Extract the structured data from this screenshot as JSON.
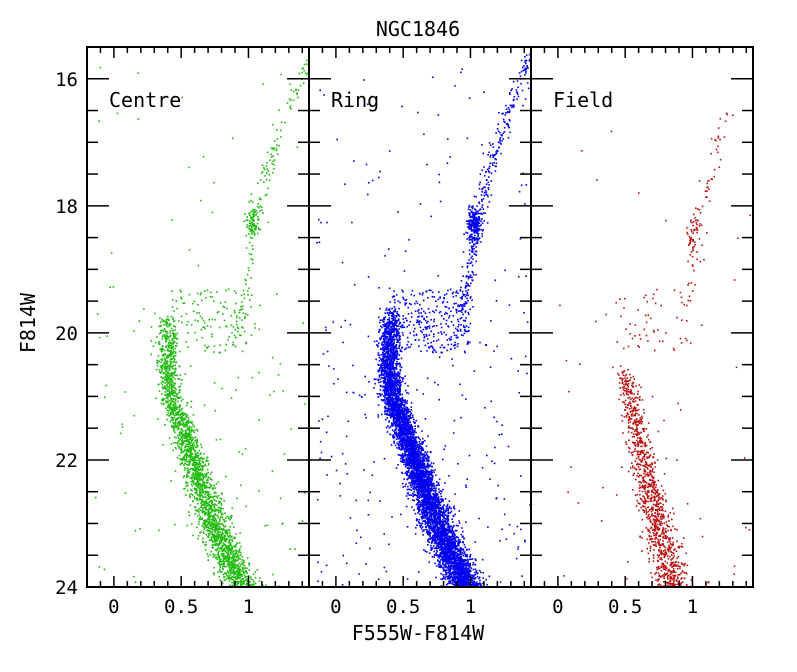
{
  "chart_data": {
    "type": "scatter",
    "title": "NGC1846",
    "xlabel": "F555W-F814W",
    "ylabel": "F814W",
    "xlim": [
      -0.2,
      1.45
    ],
    "ylim": [
      24,
      15.5
    ],
    "y_inverted": true,
    "grid": false,
    "legend": "none",
    "x_major_ticks": [
      0,
      0.5,
      1
    ],
    "x_tick_labels": [
      "0",
      "0.5",
      "1"
    ],
    "y_major_ticks": [
      16,
      18,
      20,
      22,
      24
    ],
    "y_tick_labels": [
      "16",
      "18",
      "20",
      "22",
      "24"
    ],
    "panels": [
      {
        "label": "Centre",
        "color": "#22bb11",
        "features": {
          "main_sequence_turnoff": {
            "color": 0.42,
            "mag": 20.2
          },
          "red_clump": {
            "color": 1.02,
            "mag": 18.25
          },
          "red_giant_branch_tip": {
            "color": 1.42,
            "mag": 15.8
          },
          "main_sequence_faint_end": {
            "color": 0.98,
            "mag": 24.0
          }
        },
        "ridge_line": [
          {
            "mag": 19.7,
            "color": 0.4
          },
          {
            "mag": 20.0,
            "color": 0.4
          },
          {
            "mag": 20.5,
            "color": 0.39
          },
          {
            "mag": 21.0,
            "color": 0.42
          },
          {
            "mag": 21.5,
            "color": 0.5
          },
          {
            "mag": 22.0,
            "color": 0.58
          },
          {
            "mag": 22.5,
            "color": 0.66
          },
          {
            "mag": 23.0,
            "color": 0.74
          },
          {
            "mag": 23.5,
            "color": 0.84
          },
          {
            "mag": 24.0,
            "color": 0.95
          }
        ],
        "rgb_line": [
          {
            "mag": 20.0,
            "color": 0.93
          },
          {
            "mag": 19.3,
            "color": 0.97
          },
          {
            "mag": 18.5,
            "color": 1.03
          },
          {
            "mag": 17.5,
            "color": 1.12
          },
          {
            "mag": 16.5,
            "color": 1.28
          },
          {
            "mag": 15.7,
            "color": 1.44
          }
        ]
      },
      {
        "label": "Ring",
        "color": "#0000ee",
        "features": {
          "main_sequence_turnoff": {
            "color": 0.42,
            "mag": 20.0
          },
          "red_clump": {
            "color": 1.02,
            "mag": 18.3
          },
          "red_giant_branch_tip": {
            "color": 1.42,
            "mag": 15.6
          },
          "main_sequence_faint_end": {
            "color": 1.0,
            "mag": 24.0
          }
        },
        "ridge_line": [
          {
            "mag": 19.6,
            "color": 0.41
          },
          {
            "mag": 20.0,
            "color": 0.4
          },
          {
            "mag": 20.5,
            "color": 0.39
          },
          {
            "mag": 21.0,
            "color": 0.42
          },
          {
            "mag": 21.5,
            "color": 0.5
          },
          {
            "mag": 22.0,
            "color": 0.58
          },
          {
            "mag": 22.5,
            "color": 0.66
          },
          {
            "mag": 23.0,
            "color": 0.75
          },
          {
            "mag": 23.5,
            "color": 0.85
          },
          {
            "mag": 24.0,
            "color": 0.97
          }
        ],
        "rgb_line": [
          {
            "mag": 20.0,
            "color": 0.93
          },
          {
            "mag": 19.3,
            "color": 0.97
          },
          {
            "mag": 18.5,
            "color": 1.03
          },
          {
            "mag": 17.5,
            "color": 1.12
          },
          {
            "mag": 16.5,
            "color": 1.28
          },
          {
            "mag": 15.6,
            "color": 1.44
          }
        ]
      },
      {
        "label": "Field",
        "color": "#bb1111",
        "features": {
          "main_sequence_turnoff": {
            "color": 0.45,
            "mag": 20.5
          },
          "red_clump": {
            "color": 1.0,
            "mag": 18.4
          },
          "main_sequence_faint_end": {
            "color": 0.85,
            "mag": 24.0
          }
        },
        "ridge_line": [
          {
            "mag": 20.5,
            "color": 0.48
          },
          {
            "mag": 21.0,
            "color": 0.52
          },
          {
            "mag": 21.5,
            "color": 0.58
          },
          {
            "mag": 22.0,
            "color": 0.63
          },
          {
            "mag": 22.5,
            "color": 0.68
          },
          {
            "mag": 23.0,
            "color": 0.74
          },
          {
            "mag": 23.5,
            "color": 0.8
          },
          {
            "mag": 24.0,
            "color": 0.85
          }
        ],
        "rgb_line": [
          {
            "mag": 19.5,
            "color": 0.98
          },
          {
            "mag": 18.5,
            "color": 1.02
          },
          {
            "mag": 17.5,
            "color": 1.12
          },
          {
            "mag": 16.5,
            "color": 1.26
          }
        ]
      }
    ]
  }
}
